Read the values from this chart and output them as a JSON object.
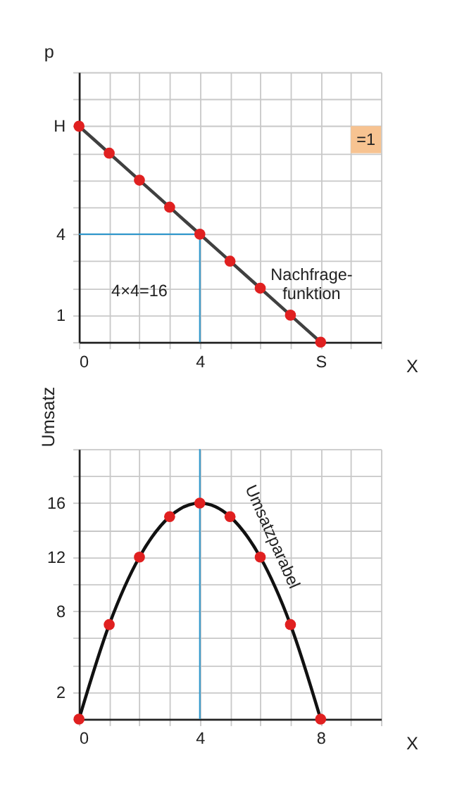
{
  "chart_data": [
    {
      "type": "line",
      "xlabel": "X",
      "ylabel": "p",
      "xlim": [
        0,
        10
      ],
      "ylim": [
        0,
        10
      ],
      "xticks": [
        {
          "value": 0,
          "label": "0"
        },
        {
          "value": 1,
          "label": null
        },
        {
          "value": 2,
          "label": null
        },
        {
          "value": 3,
          "label": null
        },
        4,
        {
          "value": 5,
          "label": null
        },
        {
          "value": 6,
          "label": null
        },
        {
          "value": 7,
          "label": null
        },
        {
          "value": 8,
          "label": "S"
        },
        {
          "value": 9,
          "label": null
        },
        {
          "value": 10,
          "label": null
        }
      ],
      "yticks": [
        {
          "value": 0,
          "label": null
        },
        1,
        {
          "value": 2,
          "label": null
        },
        {
          "value": 3,
          "label": null
        },
        4,
        {
          "value": 5,
          "label": null
        },
        {
          "value": 6,
          "label": null
        },
        {
          "value": 7,
          "label": null
        },
        {
          "value": 8,
          "label": "H"
        },
        {
          "value": 9,
          "label": null
        },
        {
          "value": 10,
          "label": null
        }
      ],
      "grid": true,
      "x": [
        0,
        1,
        2,
        3,
        4,
        5,
        6,
        7,
        8
      ],
      "series": [
        {
          "type": "line",
          "color": "#404040",
          "values": [
            8,
            7,
            6,
            5,
            4,
            3,
            2,
            1,
            0
          ]
        },
        {
          "type": "scatter",
          "color": "#e02020",
          "marker": "circle",
          "values": [
            8,
            7,
            6,
            5,
            4,
            3,
            2,
            1,
            0
          ]
        }
      ],
      "ref_lines": [
        {
          "axis": "x",
          "value": 4,
          "color": "#3399cc"
        },
        {
          "axis": "y",
          "value": 4,
          "color": "#3399cc"
        }
      ],
      "annotations": [
        "4×4=16",
        "Nachfrage-\nfunktion",
        {
          "text": "=1",
          "x": 9.5,
          "y": 7.5
        }
      ]
    },
    {
      "type": "line",
      "xlabel": "X",
      "ylabel": "Umsatz",
      "xlim": [
        0,
        10
      ],
      "ylim": [
        0,
        20
      ],
      "xticks": [
        {
          "value": 0,
          "label": "0"
        },
        {
          "value": 1,
          "label": null
        },
        {
          "value": 2,
          "label": null
        },
        {
          "value": 3,
          "label": null
        },
        4,
        {
          "value": 5,
          "label": null
        },
        {
          "value": 6,
          "label": null
        },
        {
          "value": 7,
          "label": null
        },
        8,
        {
          "value": 9,
          "label": null
        },
        {
          "value": 10,
          "label": null
        }
      ],
      "yticks": [
        {
          "value": 0,
          "label": null
        },
        2,
        {
          "value": 4,
          "label": null
        },
        {
          "value": 6,
          "label": null
        },
        8,
        {
          "value": 10,
          "label": null
        },
        12,
        {
          "value": 14,
          "label": null
        },
        16,
        {
          "value": 18,
          "label": null
        },
        {
          "value": 20,
          "label": null
        }
      ],
      "grid": true,
      "x": [
        0,
        1,
        2,
        3,
        4,
        5,
        6,
        7,
        8
      ],
      "series": [
        {
          "type": "line",
          "color": "#111111",
          "values": [
            0,
            7,
            12,
            15,
            16,
            15,
            12,
            7,
            0
          ]
        },
        {
          "type": "scatter",
          "color": "#e02020",
          "marker": "circle",
          "values": [
            0,
            7,
            12,
            15,
            16,
            15,
            12,
            7,
            0
          ]
        }
      ],
      "ref_lines": [
        {
          "axis": "x",
          "value": 4,
          "color": "#3399cc"
        }
      ],
      "annotations": [
        "Umsatzparabel"
      ]
    }
  ]
}
